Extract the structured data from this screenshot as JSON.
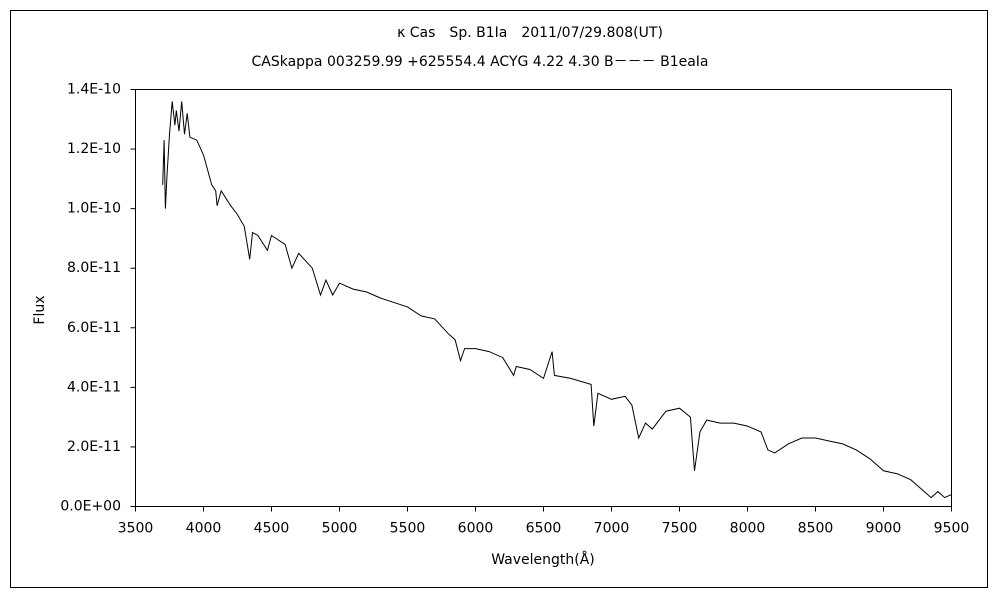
{
  "chart_data": {
    "type": "line",
    "title": "κ Cas　Sp. B1Ia　2011/07/29.808(UT)",
    "subtitle": "CASkappa 003259.99 +625554.4 ACYG 4.22 4.30 B－－－ B1eaIa",
    "x_label": "Wavelength(Å)",
    "y_label": "Flux",
    "xlim": [
      3500,
      9500
    ],
    "xticks": [
      3500,
      4000,
      4500,
      5000,
      5500,
      6000,
      6500,
      7000,
      7500,
      8000,
      8500,
      9000,
      9500
    ],
    "ylim": [
      0,
      1.4e-10
    ],
    "yticks": [
      {
        "value": 0,
        "label": "0.0E+00"
      },
      {
        "value": 2e-11,
        "label": "2.0E-11"
      },
      {
        "value": 4e-11,
        "label": "4.0E-11"
      },
      {
        "value": 6e-11,
        "label": "6.0E-11"
      },
      {
        "value": 8e-11,
        "label": "8.0E-11"
      },
      {
        "value": 1e-10,
        "label": "1.0E-10"
      },
      {
        "value": 1.2e-10,
        "label": "1.2E-10"
      },
      {
        "value": 1.4e-10,
        "label": "1.4E-10"
      }
    ],
    "grid": false,
    "color": "#000000",
    "x": [
      3700,
      3710,
      3720,
      3730,
      3750,
      3770,
      3790,
      3800,
      3820,
      3840,
      3860,
      3880,
      3900,
      3950,
      3980,
      4000,
      4030,
      4060,
      4090,
      4100,
      4130,
      4200,
      4250,
      4300,
      4340,
      4360,
      4400,
      4470,
      4500,
      4600,
      4650,
      4700,
      4800,
      4860,
      4900,
      4950,
      5000,
      5100,
      5200,
      5300,
      5500,
      5600,
      5700,
      5800,
      5850,
      5890,
      5920,
      6000,
      6100,
      6200,
      6280,
      6300,
      6400,
      6500,
      6563,
      6580,
      6700,
      6850,
      6870,
      6900,
      7000,
      7100,
      7150,
      7200,
      7250,
      7300,
      7400,
      7500,
      7580,
      7610,
      7650,
      7700,
      7800,
      7900,
      8000,
      8100,
      8150,
      8200,
      8300,
      8400,
      8500,
      8600,
      8700,
      8800,
      8900,
      9000,
      9100,
      9200,
      9300,
      9350,
      9400,
      9450,
      9500
    ],
    "values": [
      1.08e-10,
      1.23e-10,
      1e-10,
      1.1e-10,
      1.25e-10,
      1.36e-10,
      1.28e-10,
      1.33e-10,
      1.26e-10,
      1.36e-10,
      1.25e-10,
      1.32e-10,
      1.24e-10,
      1.23e-10,
      1.2e-10,
      1.18e-10,
      1.13e-10,
      1.08e-10,
      1.06e-10,
      1.01e-10,
      1.06e-10,
      1.01e-10,
      9.8e-11,
      9.4e-11,
      8.3e-11,
      9.2e-11,
      9.1e-11,
      8.6e-11,
      9.1e-11,
      8.8e-11,
      8e-11,
      8.5e-11,
      8e-11,
      7.1e-11,
      7.6e-11,
      7.1e-11,
      7.5e-11,
      7.3e-11,
      7.2e-11,
      7e-11,
      6.7e-11,
      6.4e-11,
      6.3e-11,
      5.8e-11,
      5.6e-11,
      4.9e-11,
      5.3e-11,
      5.3e-11,
      5.2e-11,
      5e-11,
      4.4e-11,
      4.7e-11,
      4.6e-11,
      4.3e-11,
      5.2e-11,
      4.4e-11,
      4.3e-11,
      4.1e-11,
      2.7e-11,
      3.8e-11,
      3.6e-11,
      3.7e-11,
      3.4e-11,
      2.3e-11,
      2.8e-11,
      2.6e-11,
      3.2e-11,
      3.3e-11,
      3e-11,
      1.2e-11,
      2.5e-11,
      2.9e-11,
      2.8e-11,
      2.8e-11,
      2.7e-11,
      2.5e-11,
      1.9e-11,
      1.8e-11,
      2.1e-11,
      2.3e-11,
      2.3e-11,
      2.2e-11,
      2.1e-11,
      1.9e-11,
      1.6e-11,
      1.2e-11,
      1.1e-11,
      9e-12,
      5e-12,
      3e-12,
      5e-12,
      3e-12,
      4e-12
    ]
  }
}
